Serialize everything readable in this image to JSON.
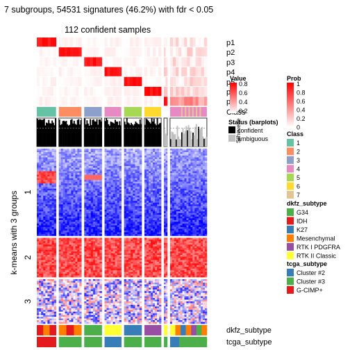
{
  "chart_data": {
    "type": "heatmap",
    "title": "7 subgroups, 54531 signatures (46.2%) with fdr < 0.05",
    "subtitle": "112 confident samples",
    "row_title": "k-means with 3 groups",
    "row_groups": [
      "1",
      "2",
      "3"
    ],
    "row_group_fractions": [
      0.51,
      0.23,
      0.26
    ],
    "top_tracks": [
      "p1",
      "p2",
      "p3",
      "p4",
      "p5",
      "p6",
      "p7",
      "Class",
      "Silhouette"
    ],
    "bottom_tracks": [
      "dkfz_subtype",
      "tcga_subtype"
    ],
    "columns": [
      {
        "class": "1",
        "fraction": 0.115
      },
      {
        "class": "2",
        "fraction": 0.135
      },
      {
        "class": "3",
        "fraction": 0.105
      },
      {
        "class": "4",
        "fraction": 0.1
      },
      {
        "class": "5",
        "fraction": 0.105
      },
      {
        "class": "6",
        "fraction": 0.1
      },
      {
        "class": "ambiguous",
        "fraction": 0.02
      },
      {
        "class": "7 + ambiguous",
        "fraction": 0.22
      }
    ],
    "legends": {
      "value": {
        "title": "Value",
        "ticks": [
          "0.8",
          "0.6",
          "0.4",
          "0.2"
        ]
      },
      "prob": {
        "title": "Prob",
        "ticks": [
          "1",
          "0.8",
          "0.6",
          "0.4",
          "0.2",
          "0"
        ]
      },
      "class": {
        "title": "Class",
        "items": [
          {
            "label": "1",
            "color": "#66c2a5"
          },
          {
            "label": "2",
            "color": "#fc8d62"
          },
          {
            "label": "3",
            "color": "#8da0cb"
          },
          {
            "label": "4",
            "color": "#e78ac3"
          },
          {
            "label": "5",
            "color": "#a6d854"
          },
          {
            "label": "6",
            "color": "#ffd92f"
          },
          {
            "label": "7",
            "color": "#e5c494"
          }
        ]
      },
      "status": {
        "title": "Status (barplots)",
        "items": [
          {
            "label": "confident",
            "color": "#000000"
          },
          {
            "label": "ambiguous",
            "color": "#bebebe"
          }
        ]
      },
      "dkfz": {
        "title": "dkfz_subtype",
        "items": [
          {
            "label": "G34",
            "color": "#4daf4a"
          },
          {
            "label": "IDH",
            "color": "#e41a1c"
          },
          {
            "label": "K27",
            "color": "#377eb8"
          },
          {
            "label": "Mesenchymal",
            "color": "#ff7f00"
          },
          {
            "label": "RTK I PDGFRA",
            "color": "#984ea3"
          },
          {
            "label": "RTK II Classic",
            "color": "#ffff33"
          }
        ]
      },
      "tcga": {
        "title": "tcga_subtype",
        "items": [
          {
            "label": "Cluster #2",
            "color": "#377eb8"
          },
          {
            "label": "Cluster #3",
            "color": "#4daf4a"
          },
          {
            "label": "G-CIMP+",
            "color": "#e41a1c"
          }
        ]
      }
    },
    "colors": {
      "heat_low": "#0000ff",
      "heat_mid": "#ffffff",
      "heat_high": "#ff0000"
    }
  }
}
